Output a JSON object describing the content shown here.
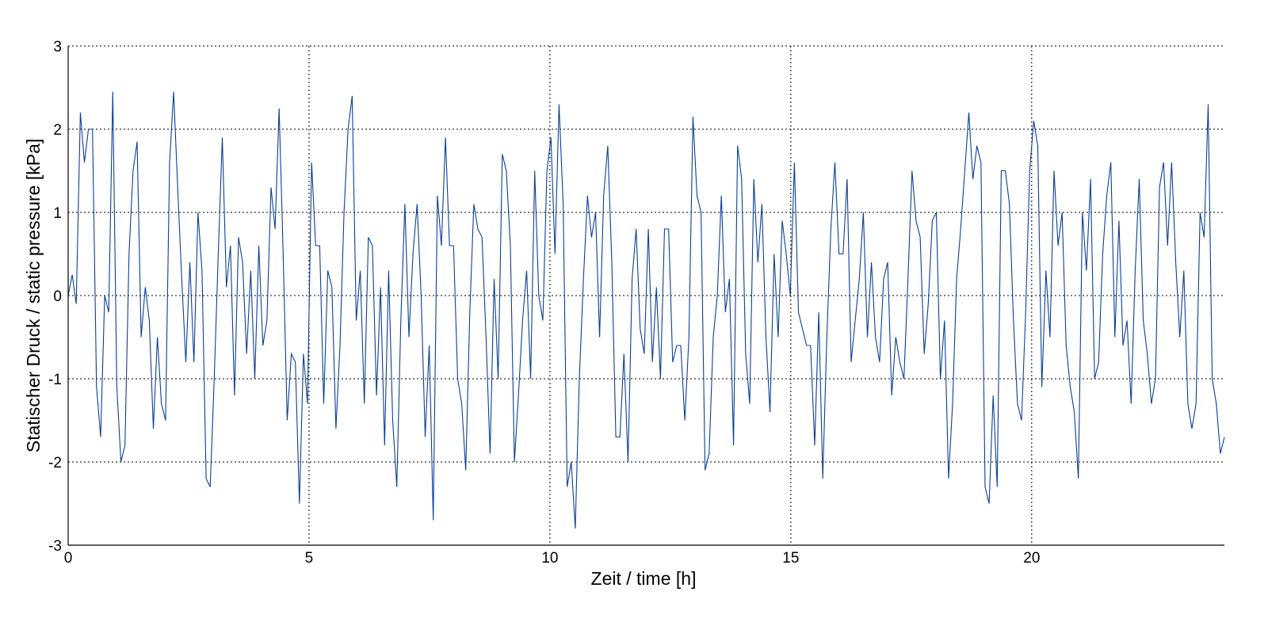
{
  "chart_data": {
    "type": "line",
    "title": "",
    "xlabel": "Zeit / time [h]",
    "ylabel": "Statischer Druck / static pressure [kPa]",
    "xlim": [
      0,
      24
    ],
    "ylim": [
      -3,
      3
    ],
    "xticks": [
      0,
      5,
      10,
      15,
      20
    ],
    "yticks": [
      -3,
      -2,
      -1,
      0,
      1,
      2,
      3
    ],
    "grid": true,
    "line_color": "#0b3f96",
    "series": [
      {
        "name": "static pressure",
        "x_start": 0,
        "x_end": 24,
        "sampling": "uniform",
        "values": [
          0,
          0.25,
          -0.1,
          2.2,
          1.6,
          2.0,
          2.0,
          -1.1,
          -1.7,
          0,
          -0.2,
          2.45,
          -1.1,
          -2.0,
          -1.8,
          0.5,
          1.5,
          1.85,
          -0.5,
          0.1,
          -0.3,
          -1.6,
          -0.5,
          -1.3,
          -1.5,
          1.6,
          2.45,
          1.3,
          0.2,
          -0.8,
          0.4,
          -0.8,
          1.0,
          0.3,
          -2.2,
          -2.3,
          -1.0,
          0.5,
          1.9,
          0.1,
          0.6,
          -1.2,
          0.7,
          0.4,
          -0.7,
          0.3,
          -1.0,
          0.6,
          -0.6,
          -0.3,
          1.3,
          0.8,
          2.25,
          0.5,
          -1.5,
          -0.7,
          -0.8,
          -2.5,
          -0.7,
          -1.3,
          1.6,
          0.6,
          0.6,
          -1.3,
          0.3,
          0.1,
          -1.6,
          -0.6,
          1.0,
          2.0,
          2.4,
          -0.3,
          0.3,
          -1.3,
          0.7,
          0.6,
          -1.2,
          0.1,
          -1.8,
          0.3,
          -1.5,
          -2.3,
          -0.3,
          1.1,
          -0.5,
          0.5,
          1.1,
          0.0,
          -1.7,
          -0.6,
          -2.7,
          1.2,
          0.6,
          1.9,
          0.6,
          0.6,
          -1.0,
          -1.3,
          -2.1,
          -0.2,
          1.1,
          0.8,
          0.7,
          -0.5,
          -1.9,
          0.2,
          -1.0,
          1.7,
          1.5,
          0.6,
          -2.0,
          -1.2,
          -0.3,
          0.3,
          -1.0,
          1.5,
          0.0,
          -0.3,
          1.5,
          1.9,
          0.5,
          2.3,
          1.1,
          -2.3,
          -2.0,
          -2.8,
          -1.0,
          0.2,
          1.2,
          0.7,
          1.0,
          -0.5,
          1.2,
          1.8,
          0.4,
          -1.7,
          -1.7,
          -0.7,
          -2.0,
          0.2,
          0.8,
          -0.4,
          -0.7,
          0.8,
          -0.8,
          0.1,
          -1.0,
          0.8,
          0.8,
          -0.8,
          -0.6,
          -0.6,
          -1.5,
          -0.5,
          2.15,
          1.2,
          1.0,
          -2.1,
          -1.9,
          -0.5,
          0.0,
          1.2,
          -0.2,
          0.2,
          -1.8,
          1.8,
          1.4,
          -0.7,
          -1.3,
          1.4,
          0.4,
          1.1,
          -0.5,
          -1.4,
          0.5,
          -0.5,
          0.9,
          0.5,
          0.0,
          1.6,
          -0.2,
          -0.4,
          -0.6,
          -0.6,
          -1.8,
          -0.2,
          -2.2,
          -0.5,
          0.8,
          1.6,
          0.5,
          0.5,
          1.4,
          -0.8,
          -0.3,
          0.2,
          1.0,
          -0.5,
          0.4,
          -0.5,
          -0.8,
          0.2,
          0.4,
          -1.2,
          -0.5,
          -0.8,
          -1.0,
          0.2,
          1.5,
          0.9,
          0.7,
          -0.7,
          -0.1,
          0.9,
          1.0,
          -1.0,
          -0.3,
          -2.2,
          -1.3,
          0.2,
          0.8,
          1.5,
          2.2,
          1.4,
          1.8,
          1.6,
          -2.3,
          -2.5,
          -1.2,
          -2.3,
          1.5,
          1.5,
          1.1,
          -0.3,
          -1.3,
          -1.5,
          -0.2,
          1.5,
          2.1,
          1.8,
          -1.1,
          0.3,
          -0.5,
          1.5,
          0.6,
          1.0,
          -0.6,
          -1.1,
          -1.4,
          -2.2,
          1.0,
          0.3,
          1.4,
          -1.0,
          -0.8,
          0.5,
          1.2,
          1.6,
          -0.5,
          0.9,
          -0.6,
          -0.3,
          -1.3,
          0.3,
          1.4,
          -0.3,
          -0.7,
          -1.3,
          -1.0,
          1.3,
          1.6,
          0.6,
          1.6,
          0.4,
          -0.5,
          0.3,
          -1.3,
          -1.6,
          -1.3,
          1.0,
          0.7,
          2.3,
          -1.0,
          -1.3,
          -1.9,
          -1.7
        ]
      }
    ]
  }
}
